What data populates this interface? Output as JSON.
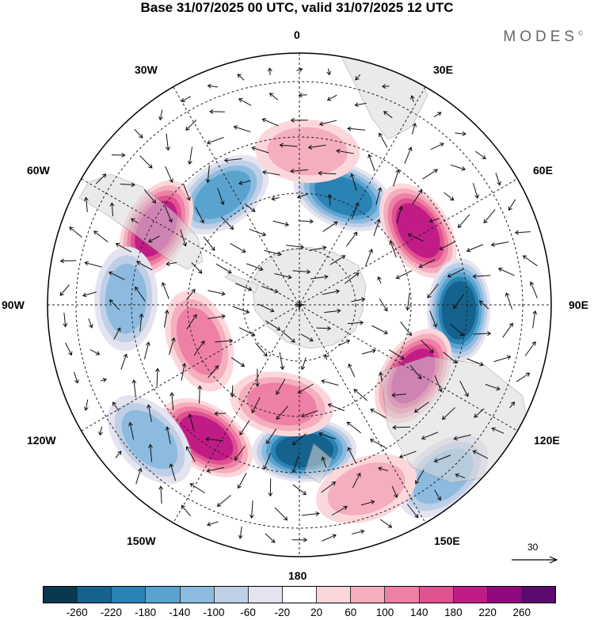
{
  "title": "Base 31/07/2025 00 UTC, valid 31/07/2025 12 UTC",
  "brand": "MODES",
  "brand_mark": "©",
  "longitude_labels": {
    "n": "0",
    "ne": "30E",
    "e_upper": "60E",
    "e": "90E",
    "e_lower": "120E",
    "se": "150E",
    "s": "180",
    "sw": "150W",
    "w_lower": "120W",
    "w": "90W",
    "w_upper": "60W",
    "nw": "30W"
  },
  "reference_vector": {
    "label": "30",
    "arrow": "right-arrow-icon"
  },
  "colorbar": {
    "colors": [
      "#08394f",
      "#14628d",
      "#2b82b4",
      "#5aa3cf",
      "#8cbbdf",
      "#bfcfe6",
      "#e4e3f0",
      "#ffffff",
      "#fbd7dc",
      "#f5aebe",
      "#ee80a5",
      "#e0528f",
      "#c11c86",
      "#8e0a7e",
      "#5b0a6e"
    ],
    "ticks": [
      "-260",
      "-220",
      "-180",
      "-140",
      "-100",
      "-60",
      "-20",
      "20",
      "60",
      "100",
      "140",
      "180",
      "220",
      "260"
    ]
  },
  "anomaly_centers": [
    {
      "lon": -35,
      "colat": 48,
      "value": -180
    },
    {
      "lon": 22,
      "colat": 42,
      "value": -220
    },
    {
      "lon": -62,
      "colat": 58,
      "value": 180
    },
    {
      "lon": 58,
      "colat": 50,
      "value": 200
    },
    {
      "lon": -88,
      "colat": 62,
      "value": -140
    },
    {
      "lon": 92,
      "colat": 57,
      "value": -260
    },
    {
      "lon": -110,
      "colat": 38,
      "value": 100
    },
    {
      "lon": 122,
      "colat": 48,
      "value": 180
    },
    {
      "lon": -145,
      "colat": 58,
      "value": 200
    },
    {
      "lon": 178,
      "colat": 52,
      "value": -240
    },
    {
      "lon": -132,
      "colat": 72,
      "value": -140
    },
    {
      "lon": 140,
      "colat": 80,
      "value": -140
    },
    {
      "lon": -170,
      "colat": 36,
      "value": 120
    },
    {
      "lon": 3,
      "colat": 55,
      "value": 80
    },
    {
      "lon": 160,
      "colat": 70,
      "value": 60
    }
  ]
}
